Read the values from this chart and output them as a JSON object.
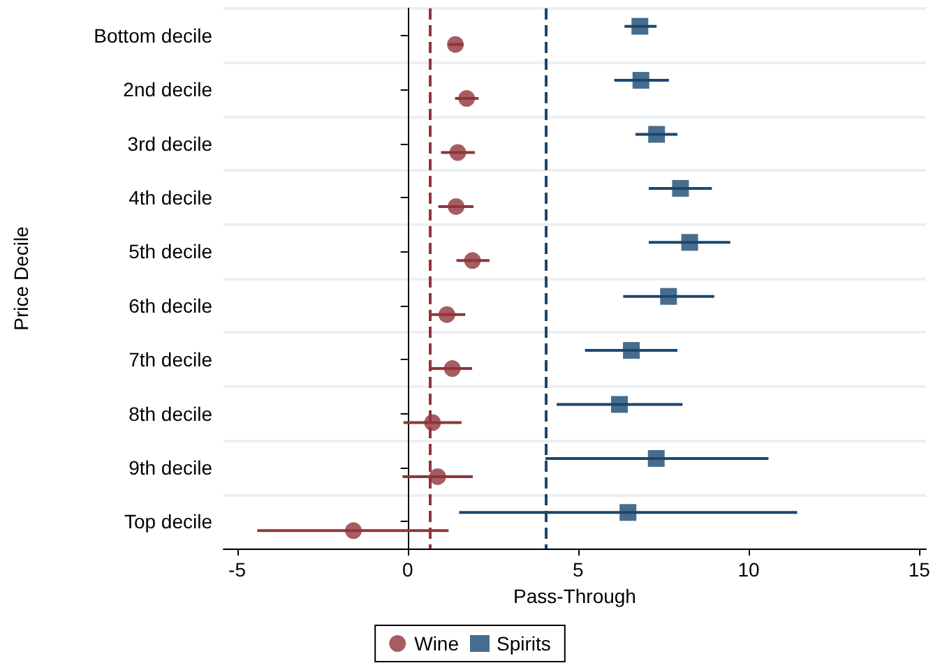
{
  "chart_data": {
    "type": "scatter",
    "orientation": "horizontal",
    "xlabel": "Pass-Through",
    "ylabel": "Price Decile",
    "categories": [
      "Bottom decile",
      "2nd decile",
      "3rd decile",
      "4th decile",
      "5th decile",
      "6th decile",
      "7th decile",
      "8th decile",
      "9th decile",
      "Top decile"
    ],
    "series": [
      {
        "name": "Wine",
        "color": "#90353b",
        "marker": "circle",
        "values": [
          1.4,
          1.73,
          1.47,
          1.42,
          1.9,
          1.15,
          1.31,
          0.73,
          0.88,
          -1.59
        ],
        "errors": [
          [
            1.2,
            1.63
          ],
          [
            1.39,
            2.08
          ],
          [
            0.98,
            1.97
          ],
          [
            0.9,
            1.93
          ],
          [
            1.43,
            2.4
          ],
          [
            0.64,
            1.69
          ],
          [
            0.64,
            1.89
          ],
          [
            -0.12,
            1.58
          ],
          [
            -0.15,
            1.91
          ],
          [
            -4.41,
            1.2
          ]
        ]
      },
      {
        "name": "Spirits",
        "color": "#1a476f",
        "marker": "square",
        "values": [
          6.81,
          6.84,
          7.3,
          8.0,
          8.27,
          7.65,
          6.56,
          6.21,
          7.29,
          6.46
        ],
        "errors": [
          [
            6.36,
            7.3
          ],
          [
            6.06,
            7.66
          ],
          [
            6.68,
            7.91
          ],
          [
            7.07,
            8.92
          ],
          [
            7.07,
            9.46
          ],
          [
            6.32,
            8.99
          ],
          [
            5.2,
            7.91
          ],
          [
            4.37,
            8.06
          ],
          [
            4.04,
            10.58
          ],
          [
            1.51,
            11.42
          ]
        ]
      }
    ],
    "xlim": [
      -5.4,
      15.2
    ],
    "xticks": [
      -5,
      0,
      5,
      10,
      15
    ],
    "grid": "y",
    "legend": "bottom",
    "ref_lines": [
      {
        "axis": "x",
        "value": 0.64,
        "color": "#90353b",
        "line_style": "dashed"
      },
      {
        "axis": "x",
        "value": 4.04,
        "color": "#1a476f",
        "line_style": "dashed"
      }
    ]
  }
}
